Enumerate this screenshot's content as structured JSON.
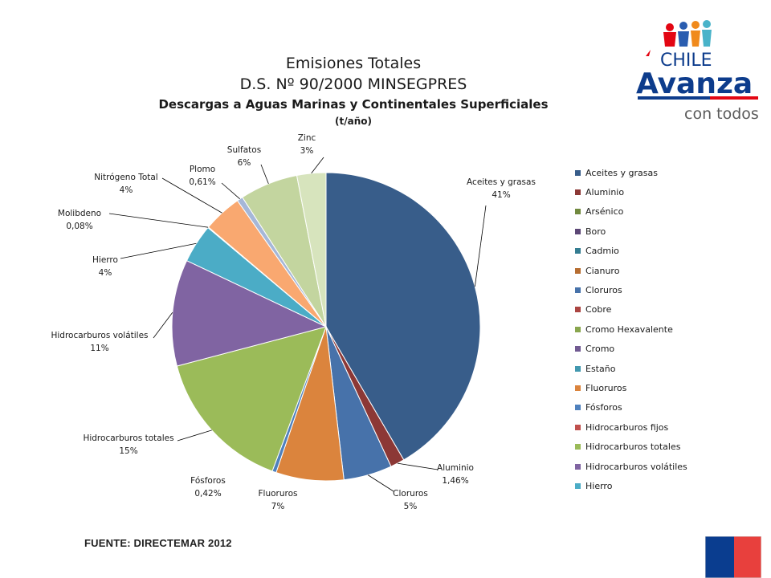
{
  "header": {
    "title_line1": "Emisiones Totales",
    "title_line2": "D.S. Nº 90/2000 MINSEGPRES",
    "subtitle": "Descargas a Aguas Marinas y Continentales Superficiales",
    "units": "(t/año)"
  },
  "logo": {
    "line1": "CHILE",
    "line2": "Avanza",
    "line3": "con todos",
    "colors": {
      "blue": "#0d3c8c",
      "red": "#e30613",
      "gray": "#5a5a5a"
    }
  },
  "footer": {
    "source": "FUENTE: DIRECTEMAR 2012"
  },
  "chart_data": {
    "type": "pie",
    "title": "Emisiones Totales D.S. Nº 90/2000 MINSEGPRES",
    "subtitle": "Descargas a Aguas Marinas y Continentales Superficiales (t/año)",
    "legend_position": "right",
    "slices": [
      {
        "name": "Aceites y grasas",
        "value": 41,
        "label": "41%",
        "color": "#385d8a"
      },
      {
        "name": "Aluminio",
        "value": 1.46,
        "label": "1,46%",
        "color": "#8c3836"
      },
      {
        "name": "Arsénico",
        "value": 0,
        "label": "",
        "color": "#71893f"
      },
      {
        "name": "Boro",
        "value": 0,
        "label": "",
        "color": "#5c4776"
      },
      {
        "name": "Cadmio",
        "value": 0,
        "label": "",
        "color": "#357d91"
      },
      {
        "name": "Cianuro",
        "value": 0,
        "label": "",
        "color": "#b66d31"
      },
      {
        "name": "Cloruros",
        "value": 5,
        "label": "5%",
        "color": "#4772aa"
      },
      {
        "name": "Cobre",
        "value": 0,
        "label": "",
        "color": "#ab4542"
      },
      {
        "name": "Cromo  Hexavalente",
        "value": 0,
        "label": "",
        "color": "#89a64e"
      },
      {
        "name": "Cromo",
        "value": 0,
        "label": "",
        "color": "#715a92"
      },
      {
        "name": "Estaño",
        "value": 0,
        "label": "",
        "color": "#4298af"
      },
      {
        "name": "Fluoruros",
        "value": 7,
        "label": "7%",
        "color": "#db843d"
      },
      {
        "name": "Fósforos",
        "value": 0.42,
        "label": "0,42%",
        "color": "#4f81bd"
      },
      {
        "name": "Hidrocarburos fijos",
        "value": 0,
        "label": "",
        "color": "#c0504d"
      },
      {
        "name": "Hidrocarburos totales",
        "value": 15,
        "label": "15%",
        "color": "#9bbb59"
      },
      {
        "name": "Hidrocarburos volátiles",
        "value": 11,
        "label": "11%",
        "color": "#8064a2"
      },
      {
        "name": "Hierro",
        "value": 4,
        "label": "4%",
        "color": "#4bacc6"
      },
      {
        "name": "Molibdeno",
        "value": 0.08,
        "label": "0,08%",
        "color": "#f79646"
      },
      {
        "name": "Nitrógeno Total",
        "value": 4,
        "label": "4%",
        "color": "#f9a870"
      },
      {
        "name": "Plomo",
        "value": 0.61,
        "label": "0,61%",
        "color": "#a5b7d8"
      },
      {
        "name": "Sulfatos",
        "value": 6,
        "label": "6%",
        "color": "#c3d59f"
      },
      {
        "name": "Zinc",
        "value": 3,
        "label": "3%",
        "color": "#d7e4bd"
      }
    ],
    "legend_entries": [
      "Aceites y grasas",
      "Aluminio",
      "Arsénico",
      "Boro",
      "Cadmio",
      "Cianuro",
      "Cloruros",
      "Cobre",
      "Cromo  Hexavalente",
      "Cromo",
      "Estaño",
      "Fluoruros",
      "Fósforos",
      "Hidrocarburos fijos",
      "Hidrocarburos totales",
      "Hidrocarburos volátiles",
      "Hierro"
    ]
  }
}
